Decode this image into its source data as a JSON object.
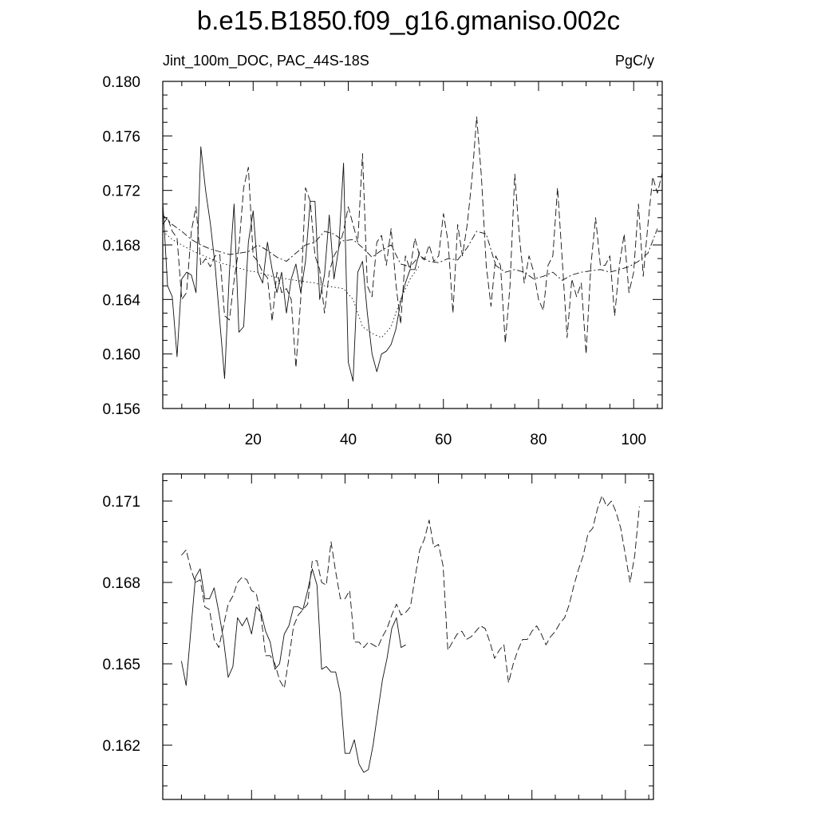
{
  "title": "b.e15.B1850.f09_g16.gmaniso.002c",
  "chart_data": [
    {
      "type": "line",
      "title": "b.e15.B1850.f09_g16.gmaniso.002c",
      "left_label": "Jint_100m_DOC, PAC_44S-18S",
      "right_label": "PgC/y",
      "xlim": [
        1,
        106
      ],
      "ylim": [
        0.156,
        0.18
      ],
      "x_ticks": [
        20,
        40,
        60,
        80,
        100
      ],
      "y_ticks": [
        "0.156",
        "0.160",
        "0.164",
        "0.168",
        "0.172",
        "0.176",
        "0.180"
      ],
      "series": [
        {
          "style": "solid",
          "x": [
            1,
            2,
            3,
            4,
            5,
            6,
            7,
            8,
            9,
            10,
            11,
            12,
            13,
            14,
            15,
            16,
            17,
            18,
            19,
            20,
            21,
            22,
            23,
            24,
            25,
            26,
            27,
            28,
            29,
            30,
            31,
            32,
            33,
            34,
            35,
            36,
            37,
            38,
            39,
            40,
            41,
            42,
            43,
            44,
            45,
            46,
            47,
            48,
            49,
            50,
            51,
            52,
            53,
            54,
            55
          ],
          "values": [
            0.1712,
            0.165,
            0.1642,
            0.1598,
            0.1655,
            0.166,
            0.1658,
            0.1645,
            0.1752,
            0.172,
            0.1696,
            0.1665,
            0.1624,
            0.1582,
            0.166,
            0.171,
            0.1616,
            0.162,
            0.1682,
            0.1705,
            0.166,
            0.1652,
            0.1682,
            0.1662,
            0.1645,
            0.166,
            0.163,
            0.1655,
            0.1666,
            0.1645,
            0.1668,
            0.1712,
            0.1712,
            0.164,
            0.1658,
            0.1702,
            0.1655,
            0.1678,
            0.174,
            0.1594,
            0.158,
            0.166,
            0.1668,
            0.163,
            0.16,
            0.1587,
            0.16,
            0.1602,
            0.1607,
            0.1618,
            0.1638,
            0.1652,
            0.1662,
            0.1662,
            0.1675
          ]
        },
        {
          "style": "dashed",
          "x": [
            1,
            2,
            3,
            4,
            5,
            6,
            7,
            8,
            9,
            10,
            11,
            12,
            13,
            14,
            15,
            16,
            17,
            18,
            19,
            20,
            21,
            22,
            23,
            24,
            25,
            26,
            27,
            28,
            29,
            30,
            31,
            32,
            33,
            34,
            35,
            36,
            37,
            38,
            39,
            40,
            41,
            42,
            43,
            44,
            45,
            46,
            47,
            48,
            49,
            50,
            51,
            52,
            53,
            54,
            55,
            56,
            57,
            58,
            59,
            60,
            61,
            62,
            63,
            64,
            65,
            66,
            67,
            68,
            69,
            70,
            71,
            72,
            73,
            74,
            75,
            76,
            77,
            78,
            79,
            80,
            81,
            82,
            83,
            84,
            85,
            86,
            87,
            88,
            89,
            90,
            91,
            92,
            93,
            94,
            95,
            96,
            97,
            98,
            99,
            100,
            101,
            102,
            103,
            104,
            105,
            106
          ],
          "values": [
            0.1695,
            0.17,
            0.169,
            0.1685,
            0.164,
            0.1645,
            0.169,
            0.1708,
            0.1665,
            0.167,
            0.1664,
            0.1672,
            0.1673,
            0.1628,
            0.1625,
            0.1654,
            0.1678,
            0.1722,
            0.1737,
            0.1672,
            0.1668,
            0.166,
            0.1656,
            0.1624,
            0.166,
            0.1645,
            0.1648,
            0.164,
            0.159,
            0.164,
            0.1722,
            0.1712,
            0.1672,
            0.1662,
            0.163,
            0.166,
            0.1672,
            0.1678,
            0.169,
            0.1708,
            0.1695,
            0.1682,
            0.1747,
            0.165,
            0.1642,
            0.1682,
            0.1687,
            0.1665,
            0.1692,
            0.1652,
            0.1622,
            0.1672,
            0.1662,
            0.1685,
            0.1672,
            0.1669,
            0.168,
            0.1668,
            0.1672,
            0.1703,
            0.1682,
            0.163,
            0.1695,
            0.1672,
            0.1695,
            0.1728,
            0.1774,
            0.173,
            0.1665,
            0.1635,
            0.1672,
            0.1665,
            0.1608,
            0.165,
            0.1732,
            0.1685,
            0.1652,
            0.1672,
            0.166,
            0.164,
            0.1632,
            0.1665,
            0.1672,
            0.1722,
            0.1668,
            0.1612,
            0.1655,
            0.1642,
            0.1652,
            0.16,
            0.1665,
            0.17,
            0.1665,
            0.1665,
            0.1672,
            0.1628,
            0.1665,
            0.1688,
            0.1645,
            0.166,
            0.171,
            0.1657,
            0.1695,
            0.173,
            0.1718,
            0.1733
          ]
        },
        {
          "style": "dash-dot",
          "x": [
            1,
            3,
            5,
            7,
            9,
            11,
            13,
            15,
            17,
            19,
            21,
            23,
            25,
            27,
            29,
            31,
            33,
            35,
            37,
            39,
            41,
            43,
            45,
            47,
            49,
            51,
            53,
            55,
            57,
            59,
            61,
            63,
            65,
            67,
            69,
            71,
            73,
            75,
            77,
            79,
            81,
            83,
            85,
            87,
            89,
            91,
            93,
            95,
            97,
            99,
            101,
            103,
            105
          ],
          "values": [
            0.1702,
            0.1695,
            0.169,
            0.1684,
            0.168,
            0.1677,
            0.1675,
            0.1673,
            0.1674,
            0.1675,
            0.168,
            0.1676,
            0.1671,
            0.1668,
            0.1674,
            0.168,
            0.1682,
            0.169,
            0.1688,
            0.1683,
            0.1684,
            0.1678,
            0.1671,
            0.1676,
            0.168,
            0.1666,
            0.1664,
            0.1672,
            0.1668,
            0.1667,
            0.167,
            0.1669,
            0.1678,
            0.169,
            0.1688,
            0.1665,
            0.166,
            0.1662,
            0.166,
            0.1655,
            0.1657,
            0.166,
            0.1654,
            0.1658,
            0.166,
            0.1661,
            0.1662,
            0.166,
            0.1662,
            0.1664,
            0.1668,
            0.1674,
            0.1692
          ]
        },
        {
          "style": "dotted",
          "x": [
            1,
            3,
            5,
            7,
            9,
            11,
            13,
            15,
            17,
            19,
            21,
            23,
            25,
            27,
            29,
            31,
            33,
            35,
            37,
            39,
            41,
            43,
            45,
            47,
            49,
            51,
            53,
            55
          ],
          "values": [
            0.169,
            0.1684,
            0.168,
            0.1676,
            0.1673,
            0.167,
            0.1667,
            0.1665,
            0.1663,
            0.1661,
            0.166,
            0.1658,
            0.1656,
            0.1655,
            0.1654,
            0.1653,
            0.1652,
            0.165,
            0.1649,
            0.1648,
            0.164,
            0.162,
            0.1615,
            0.1612,
            0.162,
            0.164,
            0.1655,
            0.1665
          ]
        }
      ]
    },
    {
      "type": "line",
      "xlim": [
        1,
        106
      ],
      "ylim": [
        0.16,
        0.172
      ],
      "x_ticks": [
        20,
        40,
        60,
        80,
        100
      ],
      "y_ticks": [
        "0.162",
        "0.165",
        "0.168",
        "0.171"
      ],
      "series": [
        {
          "style": "solid",
          "x": [
            5,
            6,
            7,
            8,
            9,
            10,
            11,
            12,
            13,
            14,
            15,
            16,
            17,
            18,
            19,
            20,
            21,
            22,
            23,
            24,
            25,
            26,
            27,
            28,
            29,
            30,
            31,
            32,
            33,
            34,
            35,
            36,
            37,
            38,
            39,
            40,
            41,
            42,
            43,
            44,
            45,
            46,
            47,
            48,
            49,
            50,
            51,
            52,
            53
          ],
          "values": [
            0.1651,
            0.1642,
            0.1662,
            0.1682,
            0.1685,
            0.1674,
            0.1674,
            0.1678,
            0.1669,
            0.1659,
            0.1645,
            0.1649,
            0.1667,
            0.1664,
            0.1667,
            0.1661,
            0.1671,
            0.1669,
            0.1662,
            0.1658,
            0.1648,
            0.165,
            0.1661,
            0.1664,
            0.1671,
            0.1671,
            0.167,
            0.1677,
            0.1685,
            0.1679,
            0.1648,
            0.1649,
            0.1647,
            0.1647,
            0.1639,
            0.1617,
            0.1617,
            0.1622,
            0.1613,
            0.161,
            0.1611,
            0.162,
            0.1632,
            0.1644,
            0.1652,
            0.1663,
            0.1667,
            0.1656,
            0.1657
          ]
        },
        {
          "style": "dashed",
          "x": [
            5,
            6,
            7,
            8,
            9,
            10,
            11,
            12,
            13,
            14,
            15,
            16,
            17,
            18,
            19,
            20,
            21,
            22,
            23,
            24,
            25,
            26,
            27,
            28,
            29,
            30,
            31,
            32,
            33,
            34,
            35,
            36,
            37,
            38,
            39,
            40,
            41,
            42,
            43,
            44,
            45,
            46,
            47,
            48,
            49,
            50,
            51,
            52,
            53,
            54,
            55,
            56,
            57,
            58,
            59,
            60,
            61,
            62,
            63,
            64,
            65,
            66,
            67,
            68,
            69,
            70,
            71,
            72,
            73,
            74,
            75,
            76,
            77,
            78,
            79,
            80,
            81,
            82,
            83,
            84,
            85,
            86,
            87,
            88,
            89,
            90,
            91,
            92,
            93,
            94,
            95,
            96,
            97,
            98,
            99,
            100,
            101,
            102,
            103
          ],
          "values": [
            0.169,
            0.1692,
            0.1685,
            0.168,
            0.1681,
            0.1671,
            0.167,
            0.1659,
            0.1656,
            0.1664,
            0.1672,
            0.1675,
            0.168,
            0.1682,
            0.1681,
            0.1677,
            0.1676,
            0.1668,
            0.1653,
            0.1653,
            0.165,
            0.1644,
            0.1641,
            0.1652,
            0.1664,
            0.1668,
            0.167,
            0.1672,
            0.1688,
            0.1688,
            0.168,
            0.1679,
            0.1695,
            0.1684,
            0.1674,
            0.1674,
            0.1677,
            0.1658,
            0.1658,
            0.1656,
            0.1658,
            0.1657,
            0.1656,
            0.166,
            0.1663,
            0.1668,
            0.1672,
            0.1668,
            0.1669,
            0.1671,
            0.1682,
            0.1692,
            0.1696,
            0.1703,
            0.1693,
            0.1694,
            0.1686,
            0.1655,
            0.1658,
            0.1661,
            0.1662,
            0.1659,
            0.166,
            0.1662,
            0.1664,
            0.1663,
            0.1658,
            0.1652,
            0.1655,
            0.1657,
            0.1643,
            0.165,
            0.1655,
            0.1659,
            0.1659,
            0.1662,
            0.1664,
            0.1661,
            0.1657,
            0.166,
            0.1662,
            0.1665,
            0.1667,
            0.1672,
            0.1679,
            0.1685,
            0.169,
            0.1698,
            0.17,
            0.1707,
            0.1712,
            0.1708,
            0.171,
            0.1706,
            0.17,
            0.169,
            0.168,
            0.169,
            0.1708
          ]
        }
      ]
    }
  ]
}
